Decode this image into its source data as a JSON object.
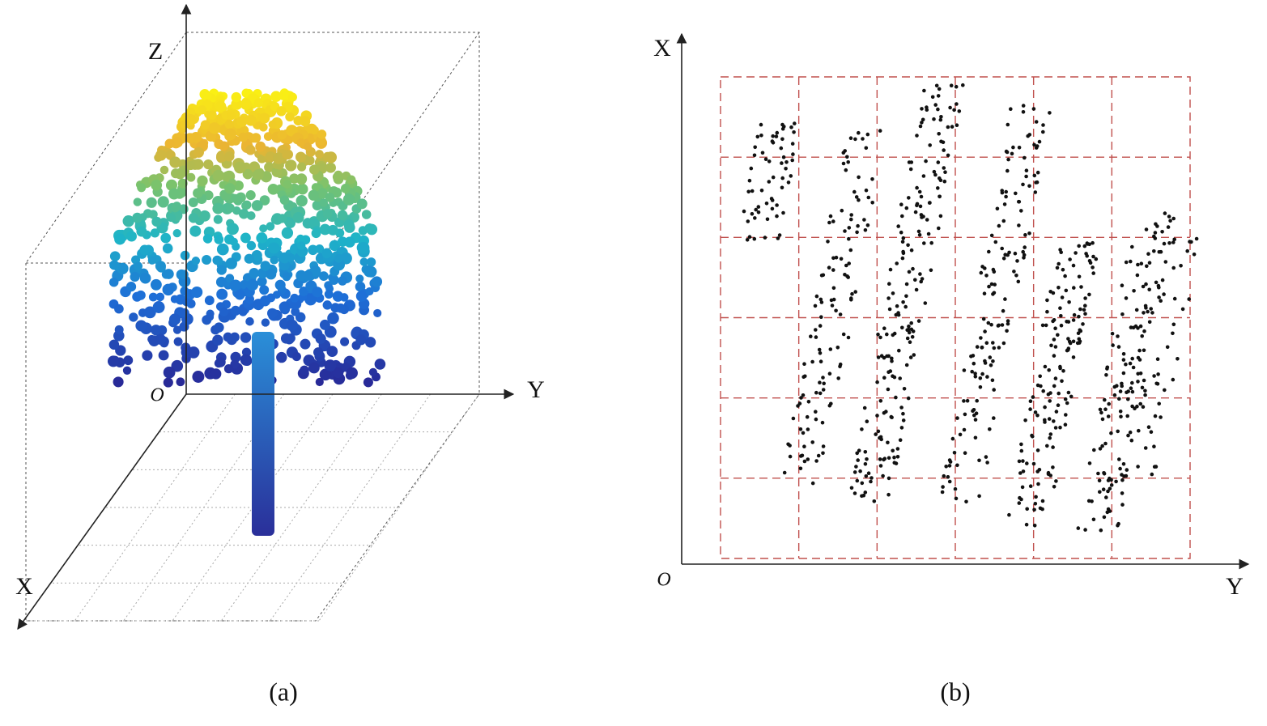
{
  "panels": [
    {
      "axes": {
        "z": "Z",
        "y": "Y",
        "x": "X",
        "origin": "O"
      },
      "caption": "(a)"
    },
    {
      "axes": {
        "x": "X",
        "y": "Y",
        "origin": "O"
      },
      "caption": "(b)"
    }
  ]
}
